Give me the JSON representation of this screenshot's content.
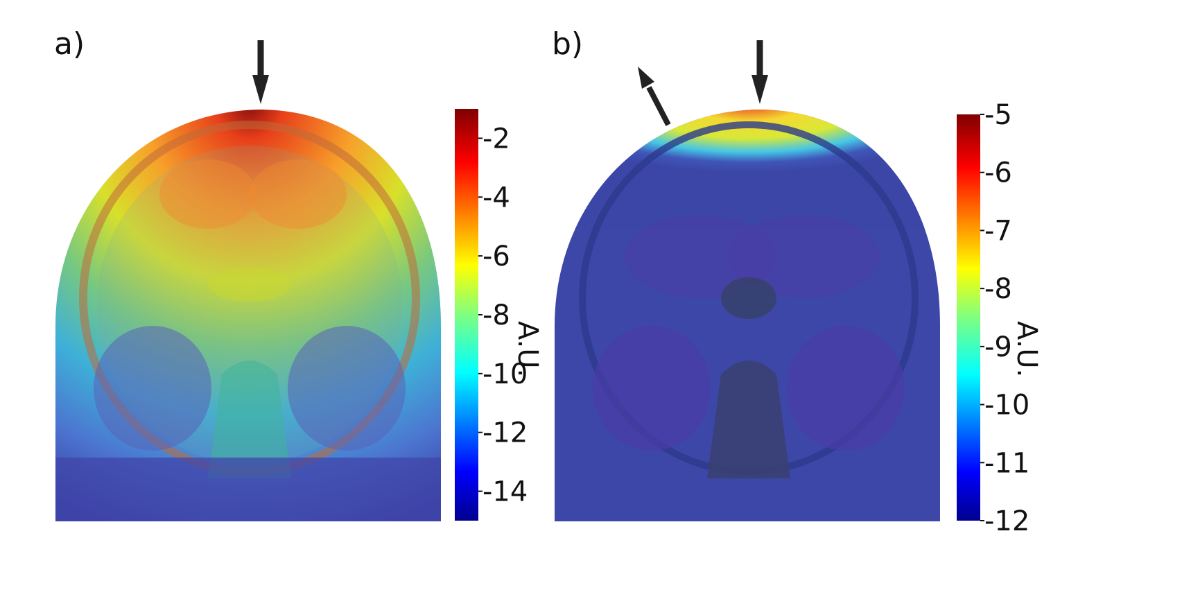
{
  "panels": [
    {
      "label": "a)",
      "colorbar": {
        "unit": "A.U.",
        "ticks": [
          "-2",
          "-4",
          "-6",
          "-8",
          "-10",
          "-12",
          "-14"
        ],
        "range": [
          -15,
          -1
        ]
      }
    },
    {
      "label": "b)",
      "colorbar": {
        "unit": "A.U.",
        "ticks": [
          "-5",
          "-6",
          "-7",
          "-8",
          "-9",
          "-10",
          "-11",
          "-12"
        ],
        "range": [
          -12,
          -5
        ]
      }
    }
  ],
  "colors": {
    "high": "#800000",
    "mid_red": "#ff2a00",
    "orange": "#ff9900",
    "yellow": "#f2ea10",
    "green": "#7fcf60",
    "cyan": "#10d0e8",
    "blue": "#1e60e0",
    "low": "#000090",
    "background_tissue": "#3b4aa8"
  }
}
